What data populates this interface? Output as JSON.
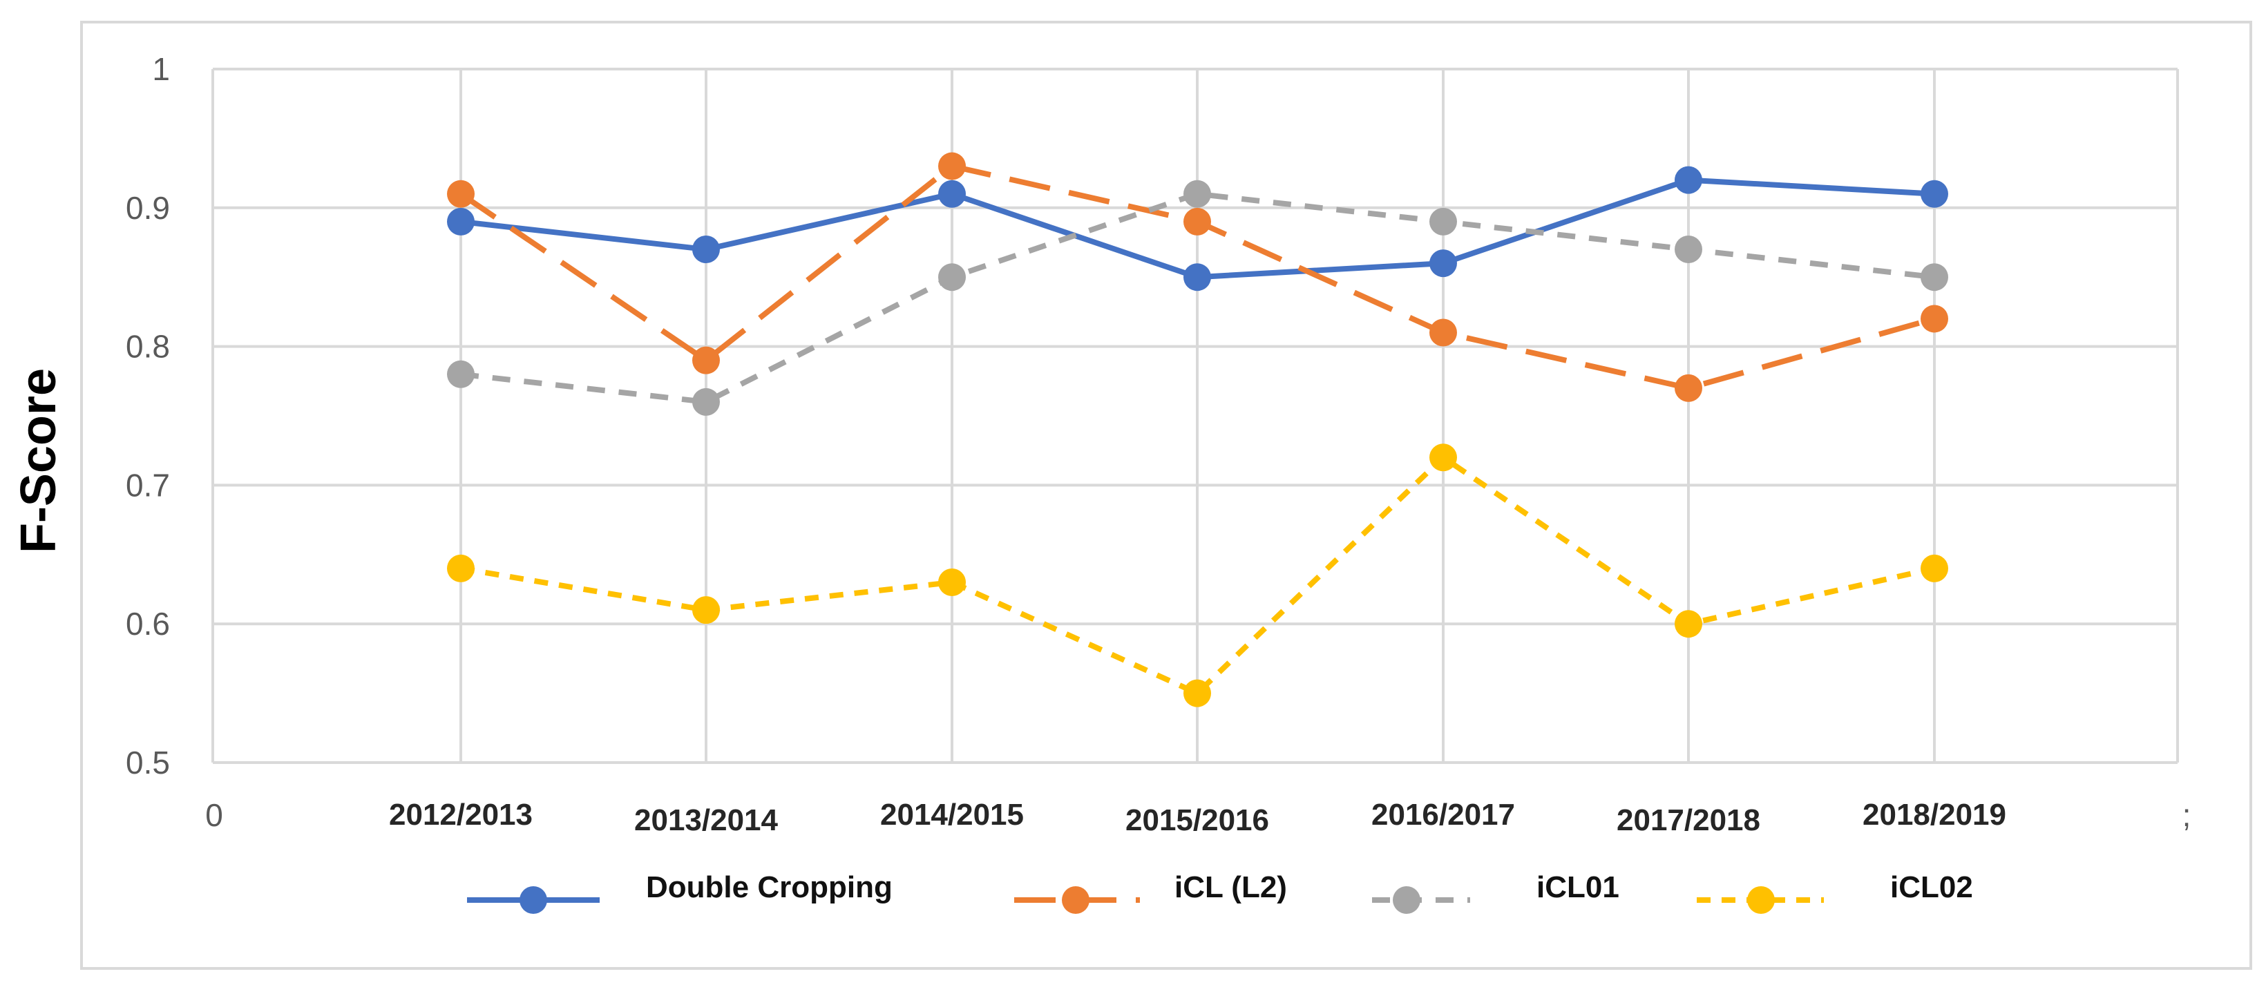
{
  "chart_data": {
    "type": "line",
    "title": "",
    "xlabel": "",
    "ylabel": "F-Score",
    "ylim": [
      0.5,
      1.0
    ],
    "yticks": [
      "0.5",
      "0.6",
      "0.7",
      "0.8",
      "0.9",
      "1"
    ],
    "x_axis_start_label": "0",
    "x_axis_end_label": ";",
    "categories": [
      "2012/2013",
      "2013/2014",
      "2014/2015",
      "2015/2016",
      "2016/2017",
      "2017/2018",
      "2018/2019"
    ],
    "series": [
      {
        "name": "Double Cropping",
        "values": [
          0.89,
          0.87,
          0.91,
          0.85,
          0.86,
          0.92,
          0.91
        ],
        "color": "#4472C4",
        "dash": "solid"
      },
      {
        "name": "iCL (L2)",
        "values": [
          0.91,
          0.79,
          0.93,
          0.89,
          0.81,
          0.77,
          0.82
        ],
        "color": "#ED7D31",
        "dash": "long-dash"
      },
      {
        "name": "iCL01",
        "values": [
          0.78,
          0.76,
          0.85,
          0.91,
          0.89,
          0.87,
          0.85
        ],
        "color": "#A5A5A5",
        "dash": "dash"
      },
      {
        "name": "iCL02",
        "values": [
          0.64,
          0.61,
          0.63,
          0.55,
          0.72,
          0.6,
          0.64
        ],
        "color": "#FFC000",
        "dash": "short-dash"
      }
    ],
    "grid": true,
    "legend_position": "bottom"
  }
}
